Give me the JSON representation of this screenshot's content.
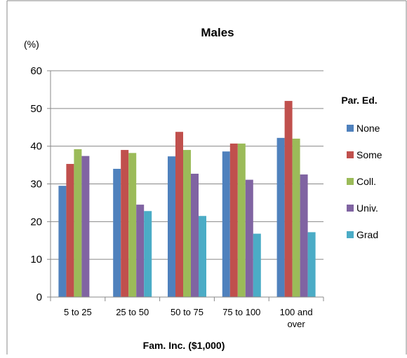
{
  "chart_data": {
    "type": "bar",
    "title": "Males",
    "y_unit": "(%)",
    "xlabel": "Fam. Inc. ($1,000)",
    "ylabel": "",
    "ylim": [
      0,
      60
    ],
    "yticks": [
      0,
      10,
      20,
      30,
      40,
      50,
      60
    ],
    "grid": true,
    "legend": {
      "title": "Par. Ed.",
      "placement": "right"
    },
    "categories": [
      [
        "5 to 25"
      ],
      [
        "25 to 50"
      ],
      [
        "50 to 75"
      ],
      [
        "75 to 100"
      ],
      [
        "100 and",
        "over"
      ]
    ],
    "series": [
      {
        "name": "None",
        "color": "#4f81bd",
        "values": [
          29.5,
          34.0,
          37.3,
          38.6,
          42.2
        ]
      },
      {
        "name": "Some",
        "color": "#c0504d",
        "values": [
          35.3,
          39.0,
          43.8,
          40.7,
          52.0
        ]
      },
      {
        "name": "Coll.",
        "color": "#9bbb59",
        "values": [
          39.2,
          38.2,
          39.0,
          40.7,
          42.0
        ]
      },
      {
        "name": "Univ.",
        "color": "#8064a2",
        "values": [
          37.4,
          24.5,
          32.7,
          31.1,
          32.5
        ]
      },
      {
        "name": "Grad",
        "color": "#4bacc6",
        "values": [
          null,
          22.8,
          21.5,
          16.8,
          17.2
        ]
      }
    ]
  }
}
